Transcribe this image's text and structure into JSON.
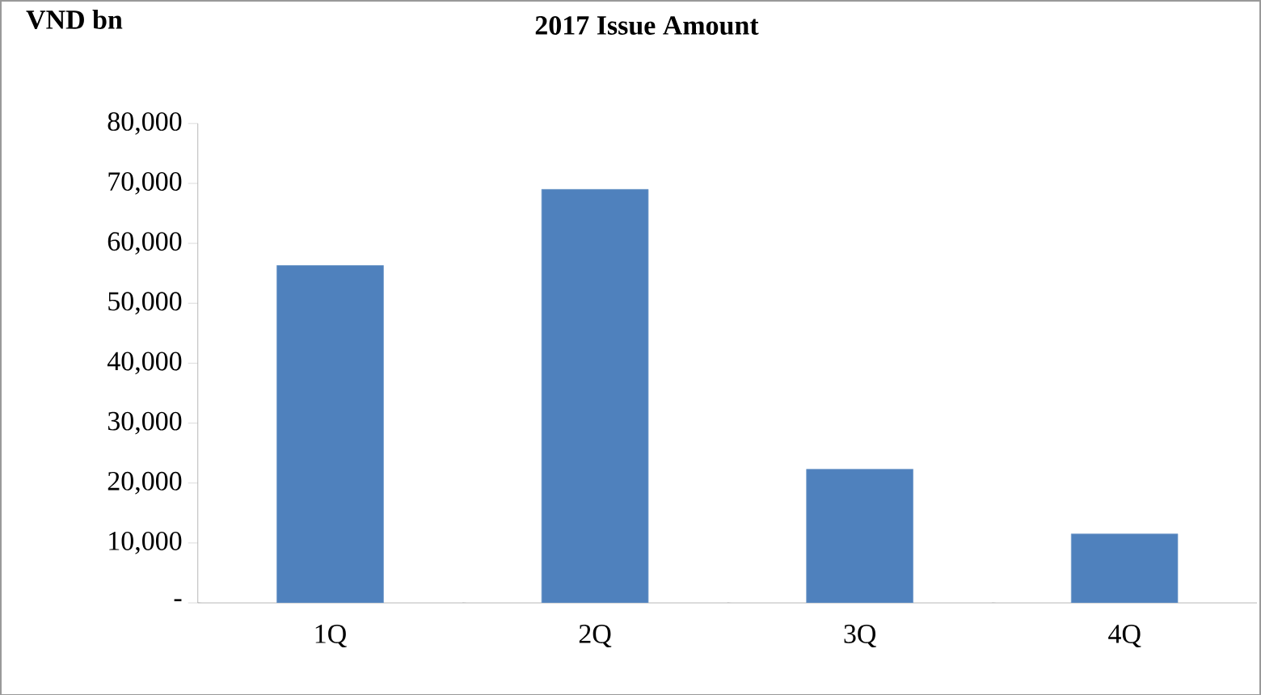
{
  "chart_data": {
    "type": "bar",
    "title": "2017 Issue Amount",
    "ylabel": "VND bn",
    "categories": [
      "1Q",
      "2Q",
      "3Q",
      "4Q"
    ],
    "values": [
      56300,
      69000,
      22300,
      11500
    ],
    "color": "#4f81bd",
    "ylim": [
      0,
      80000
    ],
    "yticks": [
      {
        "value": 0,
        "label": "-"
      },
      {
        "value": 10000,
        "label": "10,000"
      },
      {
        "value": 20000,
        "label": "20,000"
      },
      {
        "value": 30000,
        "label": "30,000"
      },
      {
        "value": 40000,
        "label": "40,000"
      },
      {
        "value": 50000,
        "label": "50,000"
      },
      {
        "value": 60000,
        "label": "60,000"
      },
      {
        "value": 70000,
        "label": "70,000"
      },
      {
        "value": 80000,
        "label": "80,000"
      }
    ],
    "grid": false
  }
}
